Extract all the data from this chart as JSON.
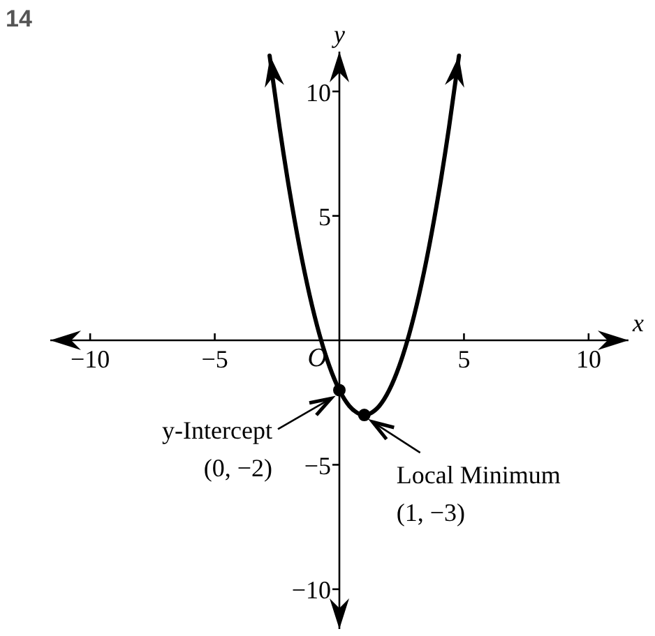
{
  "chart_data": {
    "type": "line",
    "title": "14",
    "xlabel": "x",
    "ylabel": "y",
    "xlim": [
      -11.6,
      11.6
    ],
    "ylim": [
      -11.6,
      11.6
    ],
    "xticks": [
      -10,
      -5,
      5,
      10
    ],
    "yticks": [
      -10,
      -5,
      5,
      10
    ],
    "grid": false,
    "legend": false,
    "series": [
      {
        "color": "#000000",
        "marker": "none",
        "x": [
          -2.8,
          -2.4,
          -2.0,
          -1.6,
          -1.2,
          -0.8,
          -0.4,
          0,
          0.4,
          0.8,
          1.0,
          1.2,
          1.6,
          2.0,
          2.4,
          2.8,
          3.2,
          3.6,
          4.0,
          4.4,
          4.8
        ],
        "values": [
          11.44,
          8.56,
          6,
          3.76,
          1.84,
          0.24,
          -1.04,
          -2,
          -2.64,
          -2.96,
          -3,
          -2.96,
          -2.64,
          -2,
          -1.04,
          0.24,
          1.84,
          3.76,
          6,
          8.56,
          11.44
        ]
      },
      {
        "type": "scatter",
        "color": "#000000",
        "marker": "circle",
        "x": [
          0,
          1
        ],
        "values": [
          -2,
          -3
        ]
      }
    ],
    "annotations": [
      "O",
      {
        "text": "y-Intercept\n(0, −2)",
        "x": 0,
        "y": -2
      },
      {
        "text": "Local Minimum\n(1, −3)",
        "x": 1,
        "y": -3
      }
    ]
  }
}
